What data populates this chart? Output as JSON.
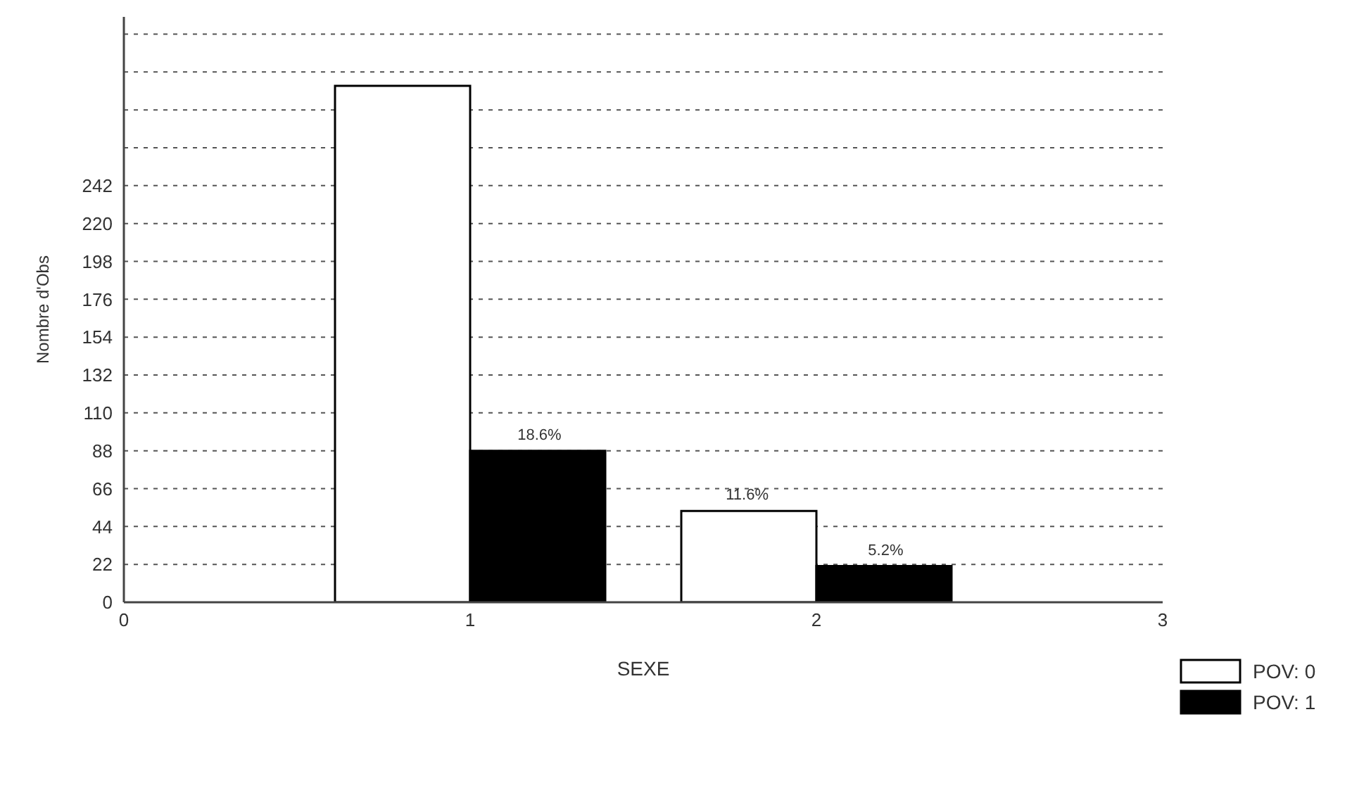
{
  "chart_data": {
    "type": "bar",
    "xlabel": "SEXE",
    "ylabel": "Nombre d'Obs",
    "x": [
      1,
      2
    ],
    "series": [
      {
        "name": "POV: 0",
        "color": "#ffffff",
        "values": [
          300,
          53
        ]
      },
      {
        "name": "POV: 1",
        "color": "#000000",
        "values": [
          88,
          21
        ]
      }
    ],
    "annotations": [
      {
        "text": "18.6%",
        "x": 1.2,
        "y": 88
      },
      {
        "text": "11.6%",
        "x": 1.8,
        "y": 53
      },
      {
        "text": "5.2%",
        "x": 2.2,
        "y": 21
      }
    ],
    "xlim": [
      0,
      3
    ],
    "xticks": [
      0,
      1,
      2,
      3
    ],
    "ylim": [
      0,
      340
    ],
    "yticks": [
      0,
      22,
      44,
      66,
      88,
      110,
      132,
      154,
      176,
      198,
      220,
      242,
      {
        "value": 264,
        "label": null
      },
      {
        "value": 286,
        "label": null
      },
      {
        "value": 308,
        "label": null
      },
      {
        "value": 330,
        "label": null
      }
    ],
    "grid": "y",
    "legend": "bottom right"
  }
}
